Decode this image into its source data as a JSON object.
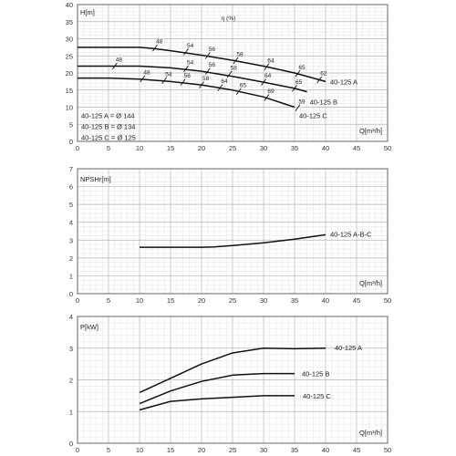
{
  "chart_data": [
    {
      "type": "line",
      "ylabel": "H[m]",
      "xlabel": "Q[m³/h]",
      "xlim": [
        0,
        50
      ],
      "ylim": [
        0,
        40
      ],
      "x_ticks": [
        "0",
        "5",
        "10",
        "15",
        "20",
        "25",
        "30",
        "35",
        "40",
        "45",
        "50"
      ],
      "y_ticks": [
        "0",
        "5",
        "10",
        "15",
        "20",
        "25",
        "30",
        "35",
        "40"
      ],
      "grid": true,
      "efficiency_label": "η (%)",
      "notes": [
        "40-125 A = Ø 144",
        "40-125 B = Ø 134",
        "40-125 C = Ø 125"
      ],
      "series": [
        {
          "name": "40-125 A",
          "x": [
            0,
            5,
            10,
            12,
            15,
            20,
            25,
            30,
            35,
            40
          ],
          "y": [
            27.5,
            27.5,
            27.5,
            27.2,
            26.5,
            25.2,
            23.7,
            22,
            20,
            17.5
          ]
        },
        {
          "name": "40-125 B",
          "x": [
            0,
            5,
            10,
            15,
            20,
            25,
            30,
            35,
            37
          ],
          "y": [
            22,
            22,
            22,
            21.5,
            20.5,
            19,
            17.3,
            15.5,
            14.5
          ]
        },
        {
          "name": "40-125 C",
          "x": [
            0,
            5,
            10,
            15,
            20,
            25,
            30,
            35
          ],
          "y": [
            18.5,
            18.5,
            18.2,
            17.5,
            16.5,
            15,
            13,
            10
          ]
        }
      ],
      "efficiency_marks": [
        {
          "value": "48",
          "x": 12.5,
          "y": 27.3
        },
        {
          "value": "54",
          "x": 17.5,
          "y": 26.2
        },
        {
          "value": "56",
          "x": 21,
          "y": 25.1
        },
        {
          "value": "58",
          "x": 25.5,
          "y": 23.6
        },
        {
          "value": "64",
          "x": 30.5,
          "y": 21.8
        },
        {
          "value": "65",
          "x": 35.5,
          "y": 19.8
        },
        {
          "value": "62",
          "x": 39,
          "y": 18
        },
        {
          "value": "48",
          "x": 6,
          "y": 22
        },
        {
          "value": "54",
          "x": 17.5,
          "y": 21.2
        },
        {
          "value": "56",
          "x": 21,
          "y": 20.5
        },
        {
          "value": "58",
          "x": 24.5,
          "y": 19.6
        },
        {
          "value": "64",
          "x": 30,
          "y": 17.3
        },
        {
          "value": "65",
          "x": 35,
          "y": 15.5
        },
        {
          "value": "48",
          "x": 10.5,
          "y": 18.3
        },
        {
          "value": "54",
          "x": 14,
          "y": 17.8
        },
        {
          "value": "56",
          "x": 17,
          "y": 17.3
        },
        {
          "value": "58",
          "x": 20,
          "y": 16.5
        },
        {
          "value": "64",
          "x": 23,
          "y": 15.7
        },
        {
          "value": "65",
          "x": 26,
          "y": 14.6
        },
        {
          "value": "69",
          "x": 30.5,
          "y": 12.8
        },
        {
          "value": "59",
          "x": 35.5,
          "y": 9.8
        }
      ]
    },
    {
      "type": "line",
      "ylabel": "NPSHr[m]",
      "xlabel": "Q[m³/h]",
      "xlim": [
        0,
        50
      ],
      "ylim": [
        0,
        7
      ],
      "x_ticks": [
        "0",
        "5",
        "10",
        "15",
        "20",
        "25",
        "30",
        "35",
        "40",
        "45",
        "50"
      ],
      "y_ticks": [
        "0",
        "1",
        "2",
        "3",
        "4",
        "5",
        "6",
        "7"
      ],
      "grid": true,
      "series": [
        {
          "name": "40-125 A-B-C",
          "x": [
            10,
            15,
            20,
            22,
            25,
            30,
            35,
            40
          ],
          "y": [
            2.6,
            2.6,
            2.6,
            2.62,
            2.7,
            2.85,
            3.05,
            3.3
          ]
        }
      ]
    },
    {
      "type": "line",
      "ylabel": "P[kW]",
      "xlabel": "Q[m³/h]",
      "xlim": [
        0,
        50
      ],
      "ylim": [
        0,
        4
      ],
      "x_ticks": [
        "0",
        "5",
        "10",
        "15",
        "20",
        "25",
        "30",
        "35",
        "40",
        "45",
        "50"
      ],
      "y_ticks": [
        "0",
        "1",
        "2",
        "3",
        "4"
      ],
      "grid": true,
      "series": [
        {
          "name": "40-125 A",
          "x": [
            10,
            15,
            20,
            25,
            30,
            35,
            40
          ],
          "y": [
            1.6,
            2.05,
            2.5,
            2.85,
            3.0,
            2.98,
            3.0
          ]
        },
        {
          "name": "40-125 B",
          "x": [
            10,
            15,
            20,
            25,
            30,
            35
          ],
          "y": [
            1.25,
            1.65,
            1.95,
            2.15,
            2.2,
            2.2
          ]
        },
        {
          "name": "40-125 C",
          "x": [
            10,
            15,
            20,
            25,
            30,
            35
          ],
          "y": [
            1.05,
            1.32,
            1.4,
            1.45,
            1.5,
            1.5
          ]
        }
      ]
    }
  ]
}
